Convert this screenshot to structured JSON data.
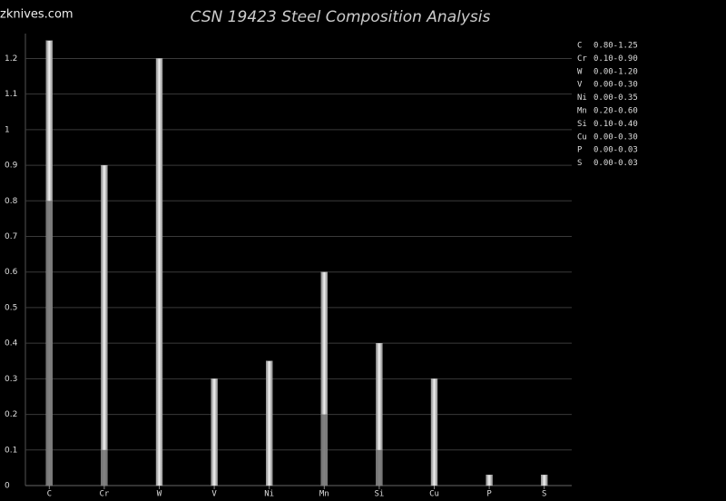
{
  "watermark": "zknives.com",
  "chart_data": {
    "type": "range-bar",
    "title": "CSN 19423 Steel Composition Analysis",
    "categories": [
      "C",
      "Cr",
      "W",
      "V",
      "Ni",
      "Mn",
      "Si",
      "Cu",
      "P",
      "S"
    ],
    "min": [
      0.8,
      0.1,
      0,
      0,
      0,
      0.2,
      0.1,
      0,
      0,
      0
    ],
    "max": [
      1.25,
      0.9,
      1.2,
      0.3,
      0.35,
      0.6,
      0.4,
      0.3,
      0.03,
      0.03
    ],
    "range_labels": [
      "0.80-1.25",
      "0.10-0.90",
      "0.00-1.20",
      "0.00-0.30",
      "0.00-0.35",
      "0.20-0.60",
      "0.10-0.40",
      "0.00-0.30",
      "0.00-0.03",
      "0.00-0.03"
    ],
    "ylim": [
      0,
      1.27
    ],
    "yticks": [
      0,
      0.1,
      0.2,
      0.3,
      0.4,
      0.5,
      0.6,
      0.7,
      0.8,
      0.9,
      1,
      1.1,
      1.2
    ],
    "grid": true,
    "min_color": "#6e6e6e",
    "max_color": "#cfcfcf"
  }
}
